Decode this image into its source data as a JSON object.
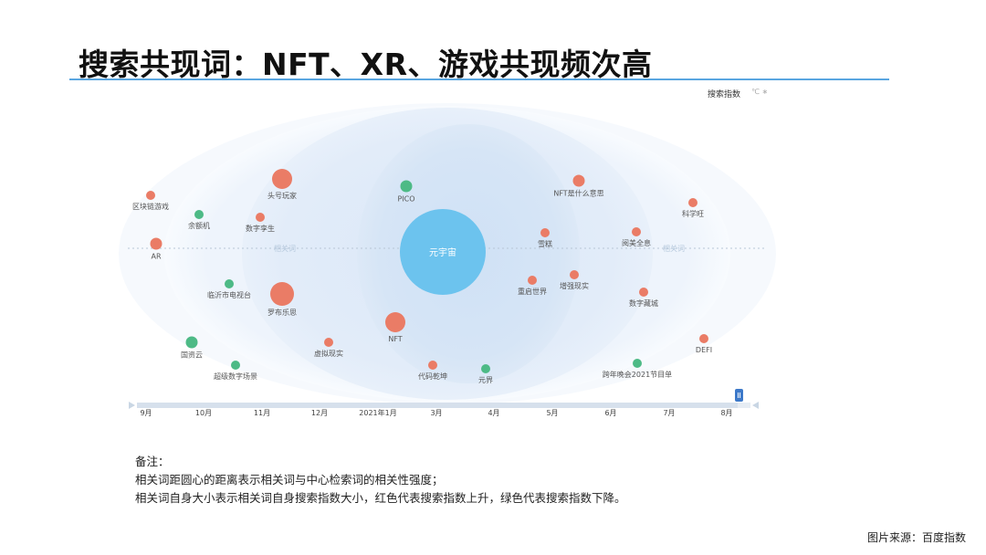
{
  "title": "搜索共现词：NFT、XR、游戏共现频次高",
  "legend": {
    "label": "搜索指数",
    "extra": "℃ ∗"
  },
  "chart_data": {
    "type": "bubble-radial",
    "center": {
      "label": "元宇宙",
      "color": "#6cc3ee"
    },
    "ring_labels": [
      "相关词",
      "相关词"
    ],
    "colors": {
      "up": "#ea7c66",
      "down": "#4dba86"
    },
    "bubbles": [
      {
        "label": "区块链游戏",
        "trend": "up",
        "size": 1
      },
      {
        "label": "AR",
        "trend": "up",
        "size": 2
      },
      {
        "label": "余额机",
        "trend": "down",
        "size": 1
      },
      {
        "label": "头号玩家",
        "trend": "up",
        "size": 4
      },
      {
        "label": "数字孪生",
        "trend": "up",
        "size": 1
      },
      {
        "label": "PICO",
        "trend": "down",
        "size": 2
      },
      {
        "label": "NFT是什么意思",
        "trend": "up",
        "size": 2
      },
      {
        "label": "雪糕",
        "trend": "up",
        "size": 1
      },
      {
        "label": "阅美全息",
        "trend": "up",
        "size": 1
      },
      {
        "label": "科学旺",
        "trend": "up",
        "size": 1
      },
      {
        "label": "临沂市电视台",
        "trend": "down",
        "size": 1
      },
      {
        "label": "罗布乐思",
        "trend": "up",
        "size": 5
      },
      {
        "label": "重启世界",
        "trend": "up",
        "size": 1
      },
      {
        "label": "增强现实",
        "trend": "up",
        "size": 1
      },
      {
        "label": "数字藏城",
        "trend": "up",
        "size": 1
      },
      {
        "label": "NFT",
        "trend": "up",
        "size": 4
      },
      {
        "label": "国资云",
        "trend": "down",
        "size": 2
      },
      {
        "label": "虚拟现实",
        "trend": "up",
        "size": 1
      },
      {
        "label": "超级数字场景",
        "trend": "down",
        "size": 1
      },
      {
        "label": "代码乾坤",
        "trend": "up",
        "size": 1
      },
      {
        "label": "元界",
        "trend": "down",
        "size": 1
      },
      {
        "label": "跨年晚会2021节目单",
        "trend": "down",
        "size": 1
      },
      {
        "label": "DEFI",
        "trend": "up",
        "size": 1
      }
    ],
    "timeline": {
      "ticks": [
        "9月",
        "10月",
        "11月",
        "12月",
        "2021年1月",
        "3月",
        "4月",
        "5月",
        "6月",
        "7月",
        "8月"
      ],
      "handle": "8月"
    }
  },
  "notes": {
    "heading": "备注：",
    "line1": "相关词距圆心的距离表示相关词与中心检索词的相关性强度；",
    "line2": "相关词自身大小表示相关词自身搜索指数大小，红色代表搜索指数上升，绿色代表搜索指数下降。"
  },
  "source": "图片来源：百度指数"
}
